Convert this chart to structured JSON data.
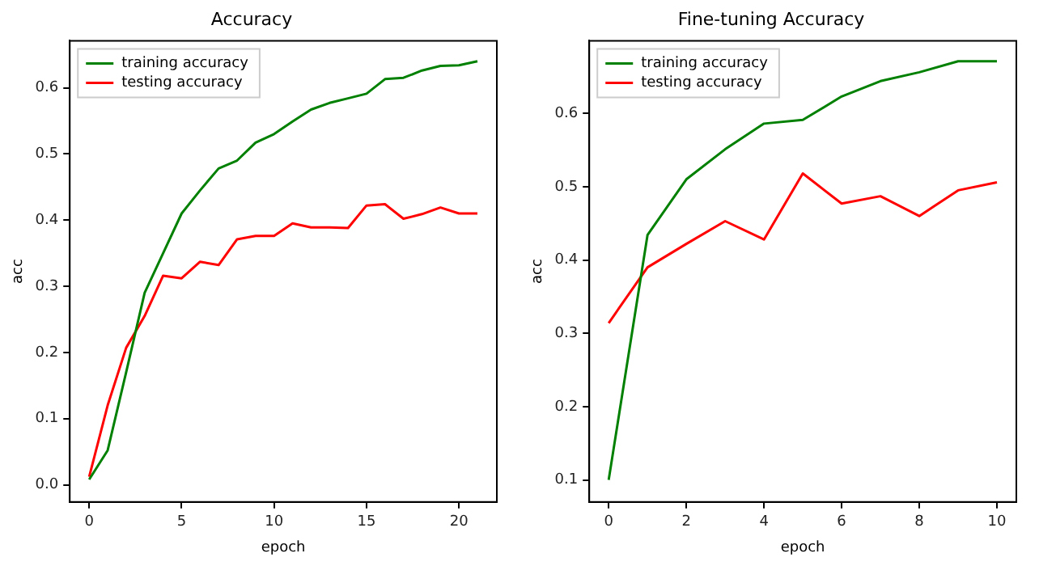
{
  "chart_data": [
    {
      "type": "line",
      "title": "Accuracy",
      "xlabel": "epoch",
      "ylabel": "acc",
      "legend": "top left",
      "grid": false,
      "marker": "none",
      "line_style": "solid",
      "x": [
        0,
        1,
        2,
        3,
        4,
        5,
        6,
        7,
        8,
        9,
        10,
        11,
        12,
        13,
        14,
        15,
        16,
        17,
        18,
        19,
        20,
        21
      ],
      "xlim": [
        -1.05,
        22.05
      ],
      "xticks": [
        0,
        5,
        10,
        15,
        20
      ],
      "ylim": [
        -0.026,
        0.671
      ],
      "yticks": [
        {
          "value": 0,
          "label": "0.0"
        },
        0.1,
        0.2,
        0.3,
        0.4,
        0.5,
        0.6
      ],
      "series": [
        {
          "name": "training accuracy",
          "color": "#008000",
          "values": [
            0.008,
            0.052,
            0.17,
            0.29,
            0.35,
            0.41,
            0.445,
            0.478,
            0.49,
            0.517,
            0.53,
            0.549,
            0.567,
            0.577,
            0.584,
            0.591,
            0.613,
            0.615,
            0.626,
            0.633,
            0.634,
            0.64
          ]
        },
        {
          "name": "testing accuracy",
          "color": "#ff0000",
          "values": [
            0.012,
            0.12,
            0.207,
            0.255,
            0.316,
            0.312,
            0.337,
            0.332,
            0.371,
            0.376,
            0.376,
            0.395,
            0.389,
            0.389,
            0.388,
            0.422,
            0.424,
            0.402,
            0.409,
            0.419,
            0.41,
            0.41
          ]
        }
      ]
    },
    {
      "type": "line",
      "title": "Fine-tuning Accuracy",
      "xlabel": "epoch",
      "ylabel": "acc",
      "legend": "top left",
      "grid": false,
      "marker": "none",
      "line_style": "solid",
      "x": [
        0,
        1,
        2,
        3,
        4,
        5,
        6,
        7,
        8,
        9,
        10
      ],
      "xlim": [
        -0.5,
        10.5
      ],
      "xticks": [
        0,
        2,
        4,
        6,
        8,
        10
      ],
      "ylim": [
        0.07,
        0.699
      ],
      "yticks": [
        0.1,
        0.2,
        0.3,
        0.4,
        0.5,
        0.6
      ],
      "series": [
        {
          "name": "training accuracy",
          "color": "#008000",
          "values": [
            0.1,
            0.434,
            0.51,
            0.551,
            0.586,
            0.591,
            0.623,
            0.644,
            0.656,
            0.671,
            0.671
          ]
        },
        {
          "name": "testing accuracy",
          "color": "#ff0000",
          "values": [
            0.314,
            0.39,
            0.422,
            0.453,
            0.428,
            0.518,
            0.477,
            0.487,
            0.46,
            0.495,
            0.506
          ]
        }
      ]
    }
  ]
}
